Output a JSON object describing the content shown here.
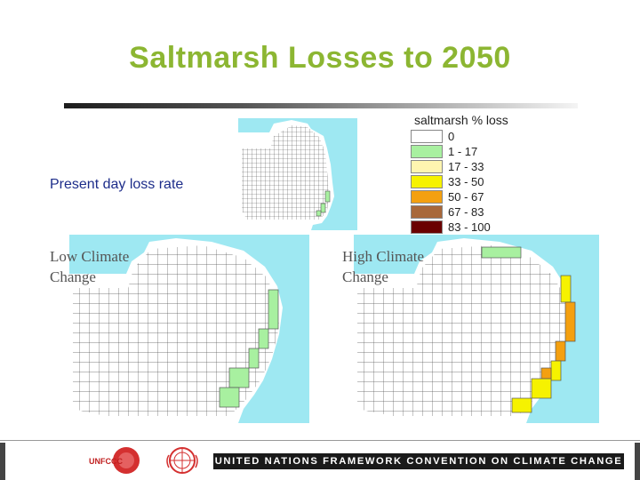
{
  "slide": {
    "title": "Saltmarsh Losses to 2050",
    "labels": {
      "present": "Present day loss rate",
      "low_line1": "Low Climate",
      "low_line2": "Change",
      "high_line1": "High Climate",
      "high_line2": "Change"
    }
  },
  "legend": {
    "title": "saltmarsh % loss",
    "items": [
      {
        "label": "0",
        "color": "#ffffff"
      },
      {
        "label": "1 - 17",
        "color": "#a8f0a0"
      },
      {
        "label": "17 - 33",
        "color": "#fff5b0"
      },
      {
        "label": "33 - 50",
        "color": "#f6f200"
      },
      {
        "label": "50 - 67",
        "color": "#f4a010"
      },
      {
        "label": "67 - 83",
        "color": "#a8683a"
      },
      {
        "label": "83 - 100",
        "color": "#6a0000"
      }
    ]
  },
  "colors": {
    "sea": "#9ee8f2",
    "land": "#ffffff",
    "grid": "#555555"
  },
  "footer": {
    "logo_text": "UNFCCC",
    "banner": "UNITED NATIONS FRAMEWORK CONVENTION ON CLIMATE CHANGE"
  }
}
